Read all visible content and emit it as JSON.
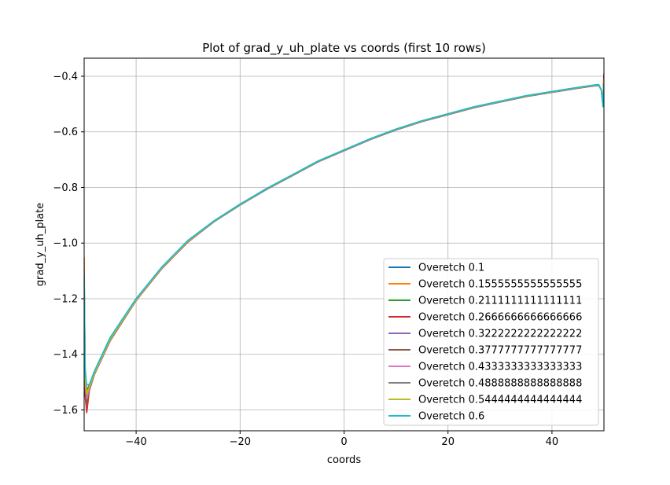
{
  "chart_data": {
    "type": "line",
    "title": "Plot of grad_y_uh_plate vs coords (first 10 rows)",
    "xlabel": "coords",
    "ylabel": "grad_y_uh_plate",
    "xlim": [
      -50,
      50
    ],
    "ylim": [
      -1.675,
      -0.335
    ],
    "xticks": [
      -40,
      -20,
      0,
      20,
      40
    ],
    "xtick_labels": [
      "−40",
      "−20",
      "0",
      "20",
      "40"
    ],
    "yticks": [
      -1.6,
      -1.4,
      -1.2,
      -1.0,
      -0.8,
      -0.6,
      -0.4
    ],
    "ytick_labels": [
      "−1.6",
      "−1.4",
      "−1.2",
      "−1.0",
      "−0.8",
      "−0.6",
      "−0.4"
    ],
    "grid": true,
    "legend_position": "lower right",
    "x": [
      -50.0,
      -49.8,
      -49.5,
      -49.0,
      -48.0,
      -45.0,
      -40.0,
      -35.0,
      -30.0,
      -25.0,
      -20.0,
      -15.0,
      -10.0,
      -5.0,
      0.0,
      5.0,
      10.0,
      15.0,
      20.0,
      25.0,
      30.0,
      35.0,
      40.0,
      45.0,
      48.0,
      49.0,
      49.5,
      49.8,
      50.0
    ],
    "series": [
      {
        "name": "Overetch 0.1",
        "color": "#1f77b4",
        "values": [
          -1.1,
          -1.45,
          -1.53,
          -1.51,
          -1.46,
          -1.34,
          -1.2,
          -1.085,
          -0.99,
          -0.92,
          -0.86,
          -0.805,
          -0.755,
          -0.705,
          -0.665,
          -0.625,
          -0.59,
          -0.56,
          -0.535,
          -0.51,
          -0.49,
          -0.47,
          -0.455,
          -0.44,
          -0.432,
          -0.43,
          -0.45,
          -0.5,
          -0.42
        ]
      },
      {
        "name": "Overetch 0.1555555555555555",
        "color": "#ff7f0e",
        "values": [
          -1.05,
          -1.48,
          -1.54,
          -1.515,
          -1.465,
          -1.345,
          -1.203,
          -1.087,
          -0.992,
          -0.921,
          -0.861,
          -0.806,
          -0.756,
          -0.706,
          -0.666,
          -0.626,
          -0.591,
          -0.561,
          -0.536,
          -0.511,
          -0.491,
          -0.471,
          -0.456,
          -0.441,
          -0.433,
          -0.431,
          -0.45,
          -0.49,
          -0.4
        ]
      },
      {
        "name": "Overetch 0.2111111111111111",
        "color": "#2ca02c",
        "values": [
          -1.12,
          -1.5,
          -1.55,
          -1.52,
          -1.468,
          -1.348,
          -1.205,
          -1.089,
          -0.994,
          -0.922,
          -0.862,
          -0.807,
          -0.757,
          -0.707,
          -0.667,
          -0.627,
          -0.592,
          -0.562,
          -0.537,
          -0.512,
          -0.492,
          -0.472,
          -0.457,
          -0.442,
          -0.434,
          -0.432,
          -0.45,
          -0.495,
          -0.41
        ]
      },
      {
        "name": "Overetch 0.2666666666666666",
        "color": "#d62728",
        "values": [
          -1.2,
          -1.55,
          -1.61,
          -1.53,
          -1.472,
          -1.352,
          -1.207,
          -1.091,
          -0.996,
          -0.923,
          -0.863,
          -0.808,
          -0.758,
          -0.708,
          -0.668,
          -0.628,
          -0.593,
          -0.563,
          -0.538,
          -0.513,
          -0.493,
          -0.473,
          -0.458,
          -0.443,
          -0.435,
          -0.433,
          -0.45,
          -0.5,
          -0.39
        ]
      },
      {
        "name": "Overetch 0.3222222222222222",
        "color": "#9467bd",
        "values": [
          -1.15,
          -1.52,
          -1.57,
          -1.525,
          -1.47,
          -1.35,
          -1.206,
          -1.09,
          -0.995,
          -0.923,
          -0.863,
          -0.808,
          -0.758,
          -0.708,
          -0.668,
          -0.628,
          -0.593,
          -0.563,
          -0.538,
          -0.513,
          -0.493,
          -0.473,
          -0.458,
          -0.443,
          -0.435,
          -0.433,
          -0.45,
          -0.5,
          -0.41
        ]
      },
      {
        "name": "Overetch 0.3777777777777777",
        "color": "#8c564b",
        "values": [
          -1.18,
          -1.53,
          -1.58,
          -1.528,
          -1.471,
          -1.351,
          -1.206,
          -1.09,
          -0.995,
          -0.923,
          -0.863,
          -0.808,
          -0.758,
          -0.708,
          -0.668,
          -0.628,
          -0.593,
          -0.563,
          -0.538,
          -0.513,
          -0.493,
          -0.473,
          -0.458,
          -0.443,
          -0.435,
          -0.433,
          -0.45,
          -0.5,
          -0.41
        ]
      },
      {
        "name": "Overetch 0.4333333333333333",
        "color": "#e377c2",
        "values": [
          -1.16,
          -1.51,
          -1.56,
          -1.524,
          -1.469,
          -1.349,
          -1.205,
          -1.089,
          -0.994,
          -0.922,
          -0.862,
          -0.807,
          -0.757,
          -0.707,
          -0.667,
          -0.627,
          -0.592,
          -0.562,
          -0.537,
          -0.512,
          -0.492,
          -0.472,
          -0.457,
          -0.442,
          -0.434,
          -0.432,
          -0.45,
          -0.5,
          -0.41
        ]
      },
      {
        "name": "Overetch 0.4888888888888888",
        "color": "#7f7f7f",
        "values": [
          -1.14,
          -1.5,
          -1.55,
          -1.522,
          -1.468,
          -1.348,
          -1.204,
          -1.088,
          -0.993,
          -0.922,
          -0.862,
          -0.807,
          -0.757,
          -0.707,
          -0.667,
          -0.627,
          -0.592,
          -0.562,
          -0.537,
          -0.512,
          -0.492,
          -0.472,
          -0.457,
          -0.442,
          -0.434,
          -0.432,
          -0.45,
          -0.5,
          -0.41
        ]
      },
      {
        "name": "Overetch 0.5444444444444444",
        "color": "#bcbd22",
        "values": [
          -1.13,
          -1.49,
          -1.545,
          -1.52,
          -1.467,
          -1.347,
          -1.204,
          -1.088,
          -0.993,
          -0.921,
          -0.861,
          -0.806,
          -0.756,
          -0.706,
          -0.666,
          -0.626,
          -0.591,
          -0.561,
          -0.536,
          -0.511,
          -0.491,
          -0.471,
          -0.456,
          -0.441,
          -0.433,
          -0.431,
          -0.45,
          -0.5,
          -0.41
        ]
      },
      {
        "name": "Overetch 0.6",
        "color": "#17becf",
        "values": [
          -1.11,
          -1.47,
          -1.51,
          -1.508,
          -1.46,
          -1.34,
          -1.2,
          -1.085,
          -0.99,
          -0.92,
          -0.86,
          -0.805,
          -0.755,
          -0.705,
          -0.665,
          -0.625,
          -0.59,
          -0.56,
          -0.535,
          -0.51,
          -0.49,
          -0.47,
          -0.455,
          -0.44,
          -0.432,
          -0.43,
          -0.45,
          -0.51,
          -0.43
        ]
      }
    ]
  }
}
